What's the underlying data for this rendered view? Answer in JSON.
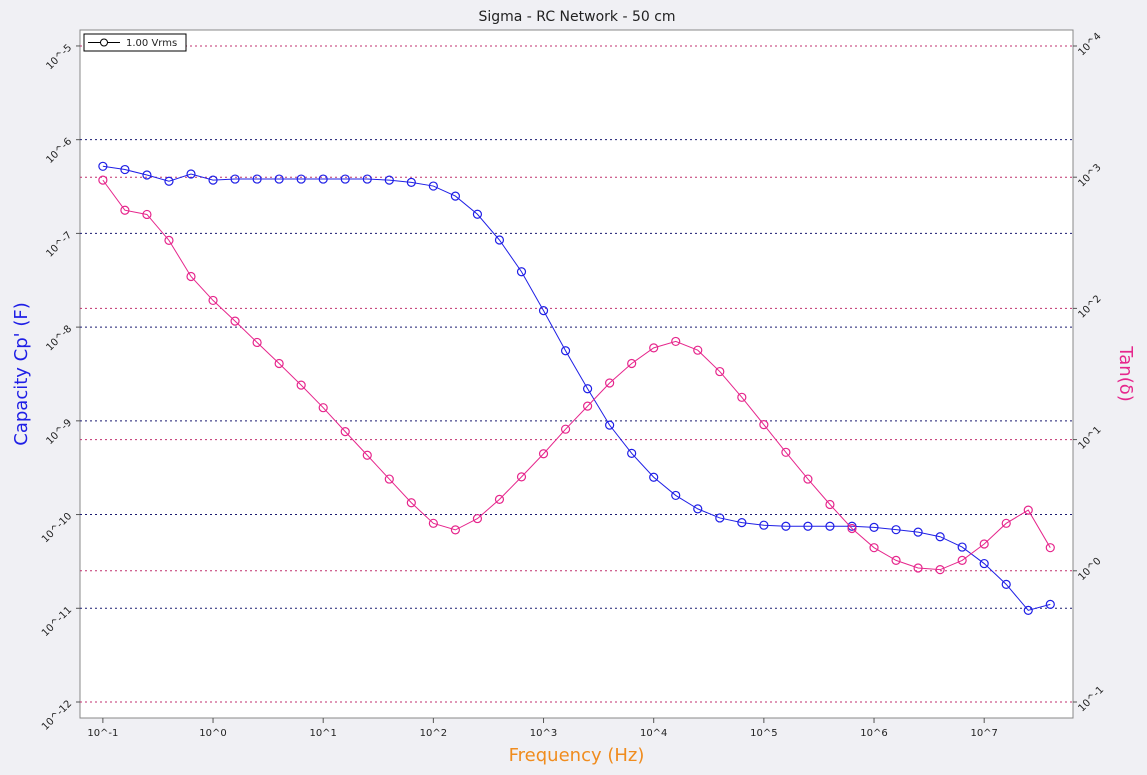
{
  "chart_data": {
    "type": "line",
    "title": "Sigma - RC Network - 50 cm",
    "x_label": "Frequency (Hz)",
    "y_label": "Capacity Cp' (F)",
    "y2_label": "Tan(δ)",
    "x_log": true,
    "y_log": true,
    "y2_log": true,
    "grid": true,
    "legend": {
      "label": "1.00 Vrms",
      "color": "#000000",
      "position": "upper left"
    },
    "x": [
      0.1,
      0.1585,
      0.2512,
      0.3981,
      0.631,
      1,
      1.585,
      2.512,
      3.981,
      6.31,
      10,
      15.85,
      25.12,
      39.81,
      63.1,
      100,
      158.5,
      251.2,
      398.1,
      631,
      1000,
      1585,
      2512,
      3981,
      6310,
      10000,
      15850,
      25120,
      39810,
      63100,
      100000,
      158500,
      251200,
      398100,
      631000,
      1000000,
      1585000,
      2512000,
      3981000,
      6310000,
      10000000,
      15850000,
      25120000,
      39810000
    ],
    "series": [
      {
        "color": "#1f1fe6",
        "values": [
          5.2e-07,
          4.8e-07,
          4.2e-07,
          3.6e-07,
          4.3e-07,
          3.7e-07,
          3.8e-07,
          3.8e-07,
          3.8e-07,
          3.8e-07,
          3.8e-07,
          3.8e-07,
          3.8e-07,
          3.7e-07,
          3.5e-07,
          3.2e-07,
          2.5e-07,
          1.6e-07,
          8.5e-08,
          3.9e-08,
          1.5e-08,
          5.6e-09,
          2.2e-09,
          9e-10,
          4.5e-10,
          2.5e-10,
          1.6e-10,
          1.15e-10,
          9.2e-11,
          8.2e-11,
          7.7e-11,
          7.5e-11,
          7.5e-11,
          7.5e-11,
          7.5e-11,
          7.3e-11,
          6.9e-11,
          6.5e-11,
          5.8e-11,
          4.5e-11,
          3e-11,
          1.8e-11,
          9.5e-12,
          1.1e-11
        ]
      },
      {
        "color": "#e6268c",
        "axis": "y2",
        "values": [
          950,
          560,
          520,
          330,
          175,
          115,
          80,
          55,
          38,
          26,
          17.5,
          11.5,
          7.6,
          5,
          3.3,
          2.3,
          2.05,
          2.5,
          3.5,
          5.2,
          7.8,
          12,
          18,
          27,
          38,
          50,
          56,
          48,
          33,
          21,
          13,
          8,
          5,
          3.2,
          2.1,
          1.5,
          1.2,
          1.05,
          1.02,
          1.2,
          1.6,
          2.3,
          2.9,
          1.5
        ]
      }
    ],
    "xlim": [
      0.062,
      64000000
    ],
    "xticks": [
      {
        "value": 0.1,
        "label": "10^-1"
      },
      {
        "value": 1,
        "label": "10^0"
      },
      {
        "value": 10,
        "label": "10^1"
      },
      {
        "value": 100,
        "label": "10^2"
      },
      {
        "value": 1000,
        "label": "10^3"
      },
      {
        "value": 10000,
        "label": "10^4"
      },
      {
        "value": 100000,
        "label": "10^5"
      },
      {
        "value": 1000000,
        "label": "10^6"
      },
      {
        "value": 10000000,
        "label": "10^7"
      }
    ],
    "ylim": [
      6.75e-13,
      1.48e-05
    ],
    "yticks": [
      {
        "value": 1e-12,
        "label": "10^-12"
      },
      {
        "value": 1e-11,
        "label": "10^-11"
      },
      {
        "value": 1e-10,
        "label": "10^-10"
      },
      {
        "value": 1e-09,
        "label": "10^-9"
      },
      {
        "value": 1e-08,
        "label": "10^-8"
      },
      {
        "value": 1e-07,
        "label": "10^-7"
      },
      {
        "value": 1e-06,
        "label": "10^-6"
      },
      {
        "value": 1e-05,
        "label": "10^-5"
      }
    ],
    "y2lim": [
      0.0755,
      13240
    ],
    "y2ticks": [
      {
        "value": 0.1,
        "label": "10^-1"
      },
      {
        "value": 1,
        "label": "10^0"
      },
      {
        "value": 10,
        "label": "10^1"
      },
      {
        "value": 100,
        "label": "10^2"
      },
      {
        "value": 1000,
        "label": "10^3"
      },
      {
        "value": 10000,
        "label": "10^4"
      }
    ],
    "grid_color": "#1a1a70",
    "grid2_color": "#c0306f",
    "x_label_color": "#f08c1e",
    "y_label_color": "#1f1fe6",
    "y2_label_color": "#e6268c"
  }
}
